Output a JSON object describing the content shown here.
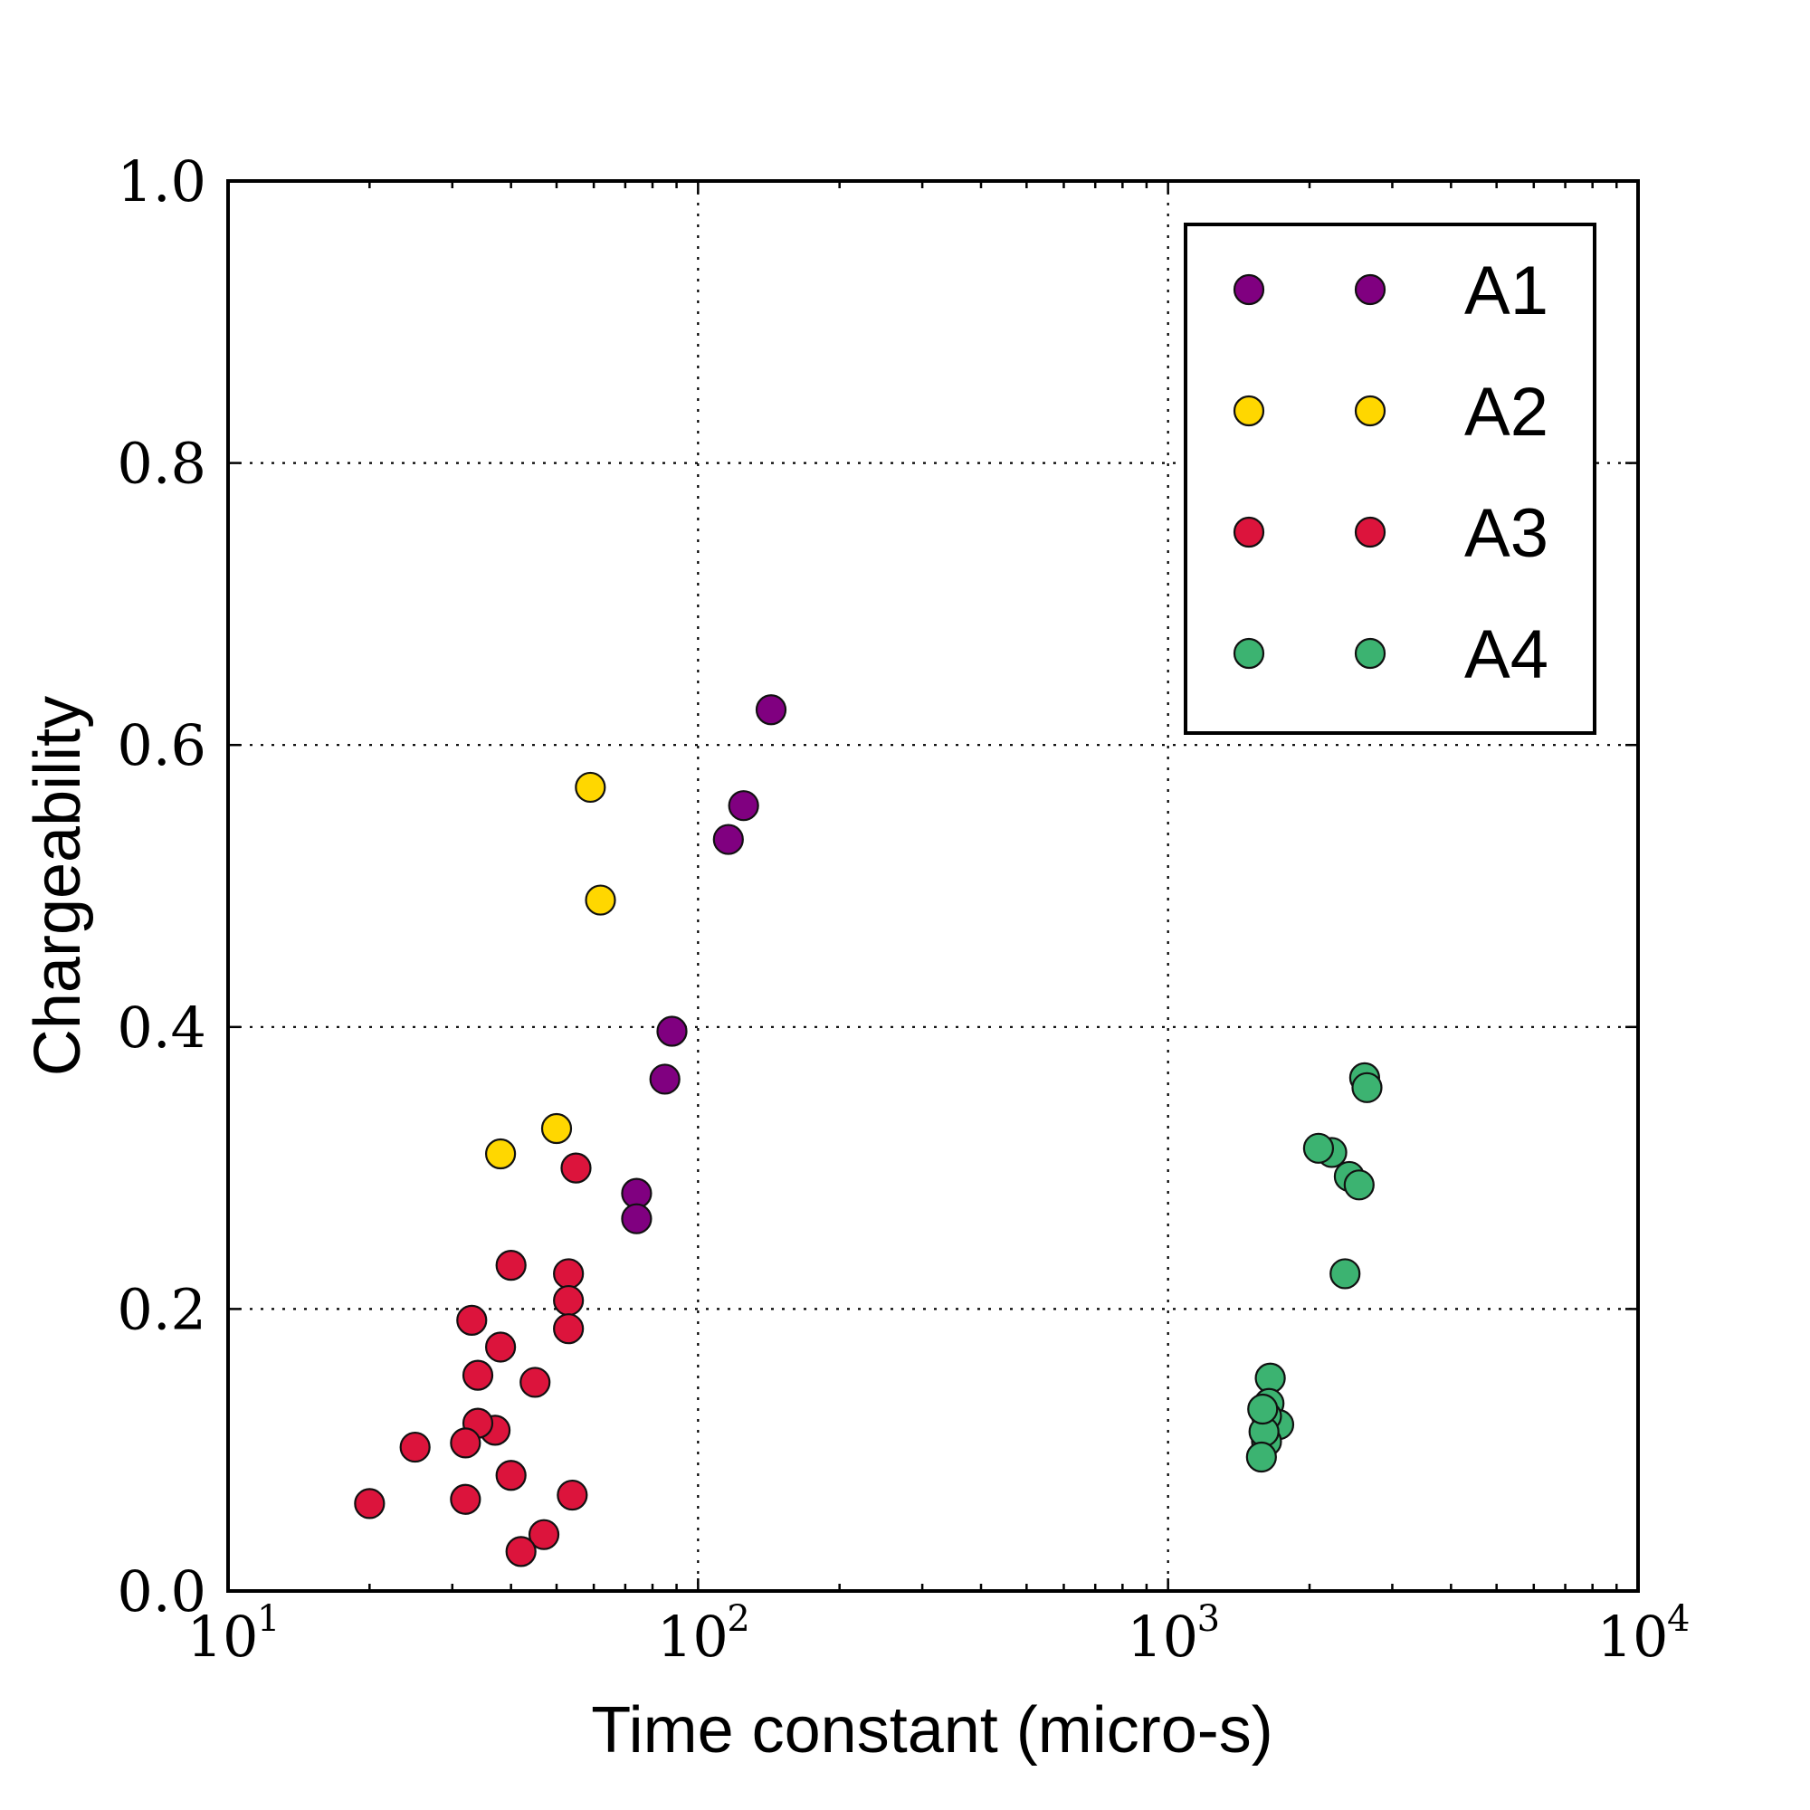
{
  "chart_data": {
    "type": "scatter",
    "xscale": "log",
    "xlim": [
      10,
      10000
    ],
    "ylim": [
      0.0,
      1.0
    ],
    "xlabel": "Time constant (micro-s)",
    "ylabel": "Chargeability",
    "grid": true,
    "legend_position": "top-right",
    "x_tick_labels": [
      {
        "base": "10",
        "exp": "1",
        "value": 10
      },
      {
        "base": "10",
        "exp": "2",
        "value": 100
      },
      {
        "base": "10",
        "exp": "3",
        "value": 1000
      },
      {
        "base": "10",
        "exp": "4",
        "value": 10000
      }
    ],
    "y_tick_labels": [
      {
        "label": "0.0",
        "value": 0.0
      },
      {
        "label": "0.2",
        "value": 0.2
      },
      {
        "label": "0.4",
        "value": 0.4
      },
      {
        "label": "0.6",
        "value": 0.6
      },
      {
        "label": "0.8",
        "value": 0.8
      },
      {
        "label": "1.0",
        "value": 1.0
      }
    ],
    "series": [
      {
        "name": "A1",
        "color": "#800080",
        "points": [
          [
            143,
            0.625
          ],
          [
            125,
            0.557
          ],
          [
            116,
            0.533
          ],
          [
            88,
            0.397
          ],
          [
            85,
            0.363
          ],
          [
            74,
            0.282
          ],
          [
            74,
            0.264
          ]
        ]
      },
      {
        "name": "A2",
        "color": "#FFD700",
        "points": [
          [
            59,
            0.57
          ],
          [
            62,
            0.49
          ],
          [
            50,
            0.328
          ],
          [
            38,
            0.31
          ]
        ]
      },
      {
        "name": "A3",
        "color": "#DC143C",
        "points": [
          [
            55,
            0.3
          ],
          [
            40,
            0.231
          ],
          [
            53,
            0.225
          ],
          [
            53,
            0.206
          ],
          [
            53,
            0.186
          ],
          [
            33,
            0.192
          ],
          [
            38,
            0.173
          ],
          [
            34,
            0.153
          ],
          [
            45,
            0.148
          ],
          [
            37,
            0.114
          ],
          [
            34,
            0.119
          ],
          [
            32,
            0.105
          ],
          [
            25,
            0.102
          ],
          [
            40,
            0.082
          ],
          [
            54,
            0.068
          ],
          [
            32,
            0.065
          ],
          [
            20,
            0.062
          ],
          [
            47,
            0.04
          ],
          [
            42,
            0.028
          ]
        ]
      },
      {
        "name": "A4",
        "color": "#3CB371",
        "points": [
          [
            2620,
            0.364
          ],
          [
            2650,
            0.357
          ],
          [
            2230,
            0.311
          ],
          [
            2090,
            0.314
          ],
          [
            2430,
            0.294
          ],
          [
            2550,
            0.288
          ],
          [
            2380,
            0.225
          ],
          [
            1650,
            0.151
          ],
          [
            1640,
            0.133
          ],
          [
            1720,
            0.118
          ],
          [
            1620,
            0.124
          ],
          [
            1620,
            0.106
          ],
          [
            1600,
            0.113
          ],
          [
            1590,
            0.129
          ],
          [
            1580,
            0.095
          ]
        ]
      }
    ]
  }
}
